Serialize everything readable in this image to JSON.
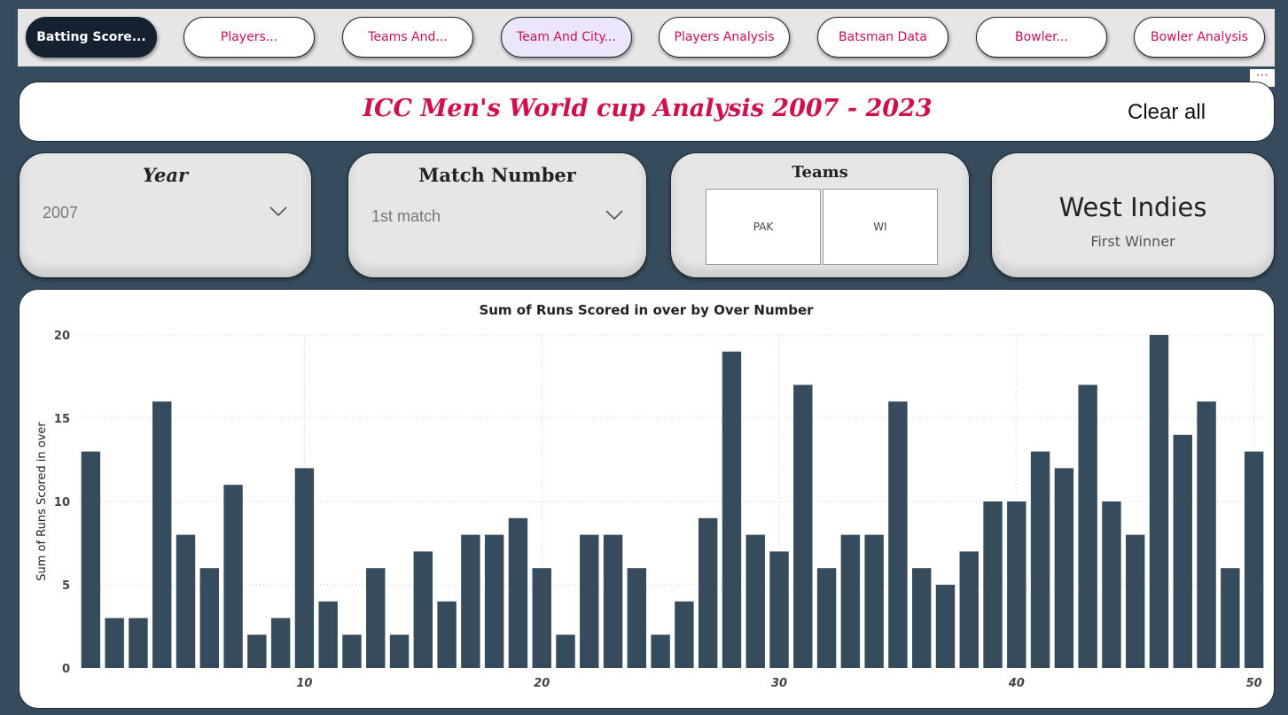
{
  "nav": {
    "buttons": [
      {
        "label": "Batting Score..."
      },
      {
        "label": "Players..."
      },
      {
        "label": "Teams And..."
      },
      {
        "label": "Team And City..."
      },
      {
        "label": "Players Analysis"
      },
      {
        "label": "Batsman Data"
      },
      {
        "label": "Bowler..."
      },
      {
        "label": "Bowler Analysis"
      }
    ]
  },
  "header": {
    "title": "ICC Men's World cup Analysis 2007 - 2023",
    "clear_all": "Clear all",
    "more_icon": "more-options-icon"
  },
  "filters": {
    "year": {
      "title": "Year",
      "value": "2007"
    },
    "match": {
      "title": "Match Number",
      "value": "1st match"
    },
    "teams": {
      "title": "Teams",
      "options": [
        "PAK",
        "WI"
      ]
    }
  },
  "kpi": {
    "value": "West Indies",
    "label": "First Winner"
  },
  "colors": {
    "accent": "#c8124f",
    "bar": "#364b5b",
    "background": "#364b5b"
  },
  "chart_data": {
    "type": "bar",
    "title": "Sum of Runs Scored in over by Over Number",
    "ylabel": "Sum of Runs Scored in over",
    "xlabel": "",
    "ylim": [
      0,
      20
    ],
    "yticks": [
      0,
      5,
      10,
      15,
      20
    ],
    "xticks": [
      10,
      20,
      30,
      40,
      50
    ],
    "x": [
      1,
      2,
      3,
      4,
      5,
      6,
      7,
      8,
      9,
      10,
      11,
      12,
      13,
      14,
      15,
      16,
      17,
      18,
      19,
      20,
      21,
      22,
      23,
      24,
      25,
      26,
      27,
      28,
      29,
      30,
      31,
      32,
      33,
      34,
      35,
      36,
      37,
      38,
      39,
      40,
      41,
      42,
      43,
      44,
      45,
      46,
      47,
      48,
      49,
      50
    ],
    "values": [
      13,
      3,
      3,
      16,
      8,
      6,
      11,
      2,
      3,
      12,
      4,
      2,
      6,
      2,
      7,
      4,
      8,
      8,
      9,
      6,
      2,
      8,
      8,
      6,
      2,
      4,
      9,
      19,
      8,
      7,
      17,
      6,
      8,
      8,
      16,
      6,
      5,
      7,
      10,
      10,
      13,
      12,
      17,
      10,
      8,
      20,
      14,
      16,
      6,
      13
    ],
    "grid": true
  }
}
